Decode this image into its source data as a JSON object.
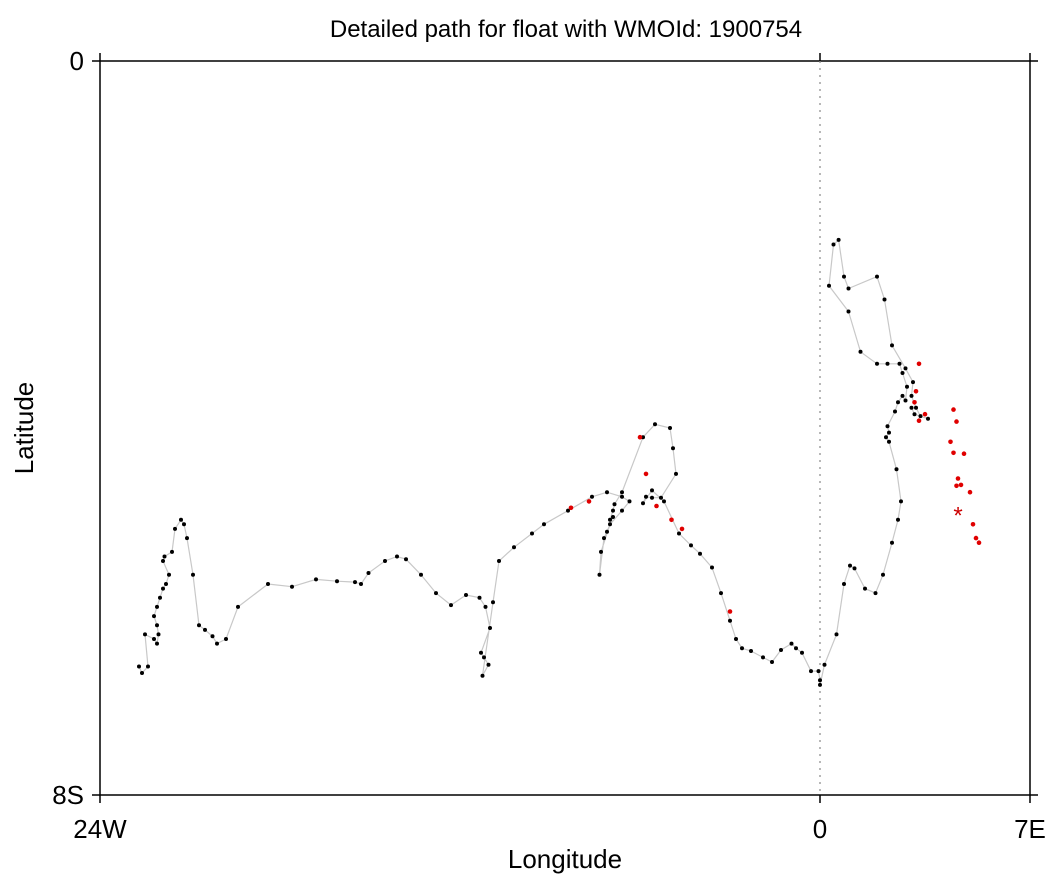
{
  "chart_data": {
    "type": "scatter",
    "title": "Detailed path for float with WMOId: 1900754",
    "xlabel": "Longitude",
    "ylabel": "Latitude",
    "xlim": [
      -24,
      7
    ],
    "ylim": [
      -8,
      0
    ],
    "x_ticks": [
      {
        "value": -24,
        "label": "24W"
      },
      {
        "value": 0,
        "label": "0"
      },
      {
        "value": 7,
        "label": "7E"
      }
    ],
    "y_ticks": [
      {
        "value": 0,
        "label": "0"
      },
      {
        "value": -8,
        "label": "8S"
      }
    ],
    "grid": false,
    "reference_line": {
      "x": 0,
      "style": "dotted"
    },
    "colors": {
      "path_line": "#c8c8c8",
      "point": "#000000",
      "highlight": "#e00000",
      "marker": "#cc0000"
    },
    "series": [
      {
        "values_note": "",
        "points": [
          [
            -22.7,
            -6.6
          ],
          [
            -22.6,
            -6.67
          ],
          [
            -22.4,
            -6.6
          ],
          [
            -22.5,
            -6.25
          ],
          [
            -22.2,
            -6.3
          ],
          [
            -22.1,
            -6.35
          ],
          [
            -22.05,
            -6.25
          ],
          [
            -22.1,
            -6.15
          ],
          [
            -22.2,
            -6.05
          ],
          [
            -22.1,
            -5.95
          ],
          [
            -22.0,
            -5.85
          ],
          [
            -21.9,
            -5.75
          ],
          [
            -21.8,
            -5.7
          ],
          [
            -21.7,
            -5.6
          ],
          [
            -21.9,
            -5.45
          ],
          [
            -21.85,
            -5.4
          ],
          [
            -21.6,
            -5.35
          ],
          [
            -21.5,
            -5.1
          ],
          [
            -21.3,
            -5.0
          ],
          [
            -21.2,
            -5.05
          ],
          [
            -21.1,
            -5.2
          ],
          [
            -20.9,
            -5.6
          ],
          [
            -20.7,
            -6.15
          ],
          [
            -20.5,
            -6.2
          ],
          [
            -20.25,
            -6.27
          ],
          [
            -20.1,
            -6.35
          ],
          [
            -19.8,
            -6.3
          ],
          [
            -19.4,
            -5.95
          ],
          [
            -18.4,
            -5.7
          ],
          [
            -17.6,
            -5.73
          ],
          [
            -16.8,
            -5.65
          ],
          [
            -16.1,
            -5.67
          ],
          [
            -15.5,
            -5.68
          ],
          [
            -15.3,
            -5.7
          ],
          [
            -15.05,
            -5.58
          ],
          [
            -14.5,
            -5.45
          ],
          [
            -14.1,
            -5.4
          ],
          [
            -13.8,
            -5.43
          ],
          [
            -13.3,
            -5.6
          ],
          [
            -12.8,
            -5.8
          ],
          [
            -12.3,
            -5.93
          ],
          [
            -11.8,
            -5.82
          ],
          [
            -11.35,
            -5.85
          ],
          [
            -11.15,
            -5.95
          ],
          [
            -11.0,
            -6.18
          ],
          [
            -11.3,
            -6.45
          ],
          [
            -11.2,
            -6.5
          ],
          [
            -11.05,
            -6.58
          ],
          [
            -11.25,
            -6.7
          ],
          [
            -10.9,
            -5.9
          ],
          [
            -10.7,
            -5.45
          ],
          [
            -10.2,
            -5.3
          ],
          [
            -9.6,
            -5.15
          ],
          [
            -9.2,
            -5.05
          ],
          [
            -8.4,
            -4.9
          ],
          [
            -7.6,
            -4.75
          ],
          [
            -7.1,
            -4.7
          ],
          [
            -6.6,
            -4.75
          ],
          [
            -6.35,
            -4.8
          ],
          [
            -6.6,
            -4.9
          ],
          [
            -7.0,
            -5.05
          ],
          [
            -7.3,
            -5.35
          ],
          [
            -7.35,
            -5.6
          ],
          [
            -7.2,
            -5.2
          ],
          [
            -7.1,
            -5.13
          ],
          [
            -6.9,
            -4.97
          ],
          [
            -7.0,
            -5.0
          ],
          [
            -6.9,
            -4.9
          ],
          [
            -6.85,
            -4.83
          ],
          [
            -6.6,
            -4.7
          ],
          [
            -5.9,
            -4.1
          ],
          [
            -5.5,
            -3.96
          ],
          [
            -5.0,
            -4.0
          ],
          [
            -4.9,
            -4.22
          ],
          [
            -4.8,
            -4.5
          ],
          [
            -5.3,
            -4.76
          ],
          [
            -5.6,
            -4.76
          ],
          [
            -5.8,
            -4.75
          ],
          [
            -5.9,
            -4.82
          ],
          [
            -5.6,
            -4.68
          ],
          [
            -5.2,
            -4.8
          ],
          [
            -4.7,
            -5.15
          ],
          [
            -4.3,
            -5.28
          ],
          [
            -4.0,
            -5.37
          ],
          [
            -3.6,
            -5.52
          ],
          [
            -3.3,
            -5.8
          ],
          [
            -3.0,
            -6.1
          ],
          [
            -2.8,
            -6.3
          ],
          [
            -2.6,
            -6.4
          ],
          [
            -2.3,
            -6.43
          ],
          [
            -1.9,
            -6.5
          ],
          [
            -1.6,
            -6.55
          ],
          [
            -1.3,
            -6.42
          ],
          [
            -0.95,
            -6.35
          ],
          [
            -0.8,
            -6.4
          ],
          [
            -0.6,
            -6.45
          ],
          [
            -0.3,
            -6.65
          ],
          [
            -0.05,
            -6.65
          ],
          [
            0.0,
            -6.75
          ],
          [
            0.0,
            -6.8
          ],
          [
            0.15,
            -6.58
          ],
          [
            0.55,
            -6.25
          ],
          [
            0.8,
            -5.7
          ],
          [
            1.0,
            -5.5
          ],
          [
            1.15,
            -5.53
          ],
          [
            1.5,
            -5.75
          ],
          [
            1.85,
            -5.8
          ],
          [
            2.1,
            -5.6
          ],
          [
            2.4,
            -5.25
          ],
          [
            2.6,
            -5.0
          ],
          [
            2.7,
            -4.8
          ],
          [
            2.55,
            -4.45
          ],
          [
            2.3,
            -4.15
          ],
          [
            2.2,
            -4.1
          ],
          [
            2.3,
            -4.05
          ],
          [
            2.25,
            -3.98
          ],
          [
            2.5,
            -3.82
          ],
          [
            2.6,
            -3.72
          ],
          [
            2.75,
            -3.65
          ],
          [
            2.85,
            -3.7
          ],
          [
            2.9,
            -3.55
          ],
          [
            2.75,
            -3.4
          ],
          [
            2.65,
            -3.3
          ],
          [
            2.25,
            -3.3
          ],
          [
            1.9,
            -3.3
          ],
          [
            1.35,
            -3.17
          ],
          [
            0.95,
            -2.73
          ],
          [
            0.3,
            -2.45
          ],
          [
            0.45,
            -2.0
          ],
          [
            0.62,
            -1.95
          ],
          [
            0.8,
            -2.35
          ],
          [
            0.95,
            -2.48
          ],
          [
            1.9,
            -2.35
          ],
          [
            2.15,
            -2.6
          ],
          [
            2.4,
            -3.1
          ],
          [
            2.85,
            -3.35
          ],
          [
            3.1,
            -3.5
          ],
          [
            3.05,
            -3.65
          ],
          [
            3.2,
            -3.78
          ],
          [
            3.35,
            -3.87
          ],
          [
            3.6,
            -3.9
          ],
          [
            3.15,
            -3.85
          ],
          [
            3.05,
            -3.78
          ]
        ]
      },
      {
        "name": "",
        "highlighted_points": [
          [
            -8.3,
            -4.87
          ],
          [
            -7.7,
            -4.8
          ],
          [
            -6.0,
            -4.1
          ],
          [
            -5.8,
            -4.5
          ],
          [
            -5.45,
            -4.85
          ],
          [
            -4.95,
            -5.0
          ],
          [
            -4.6,
            -5.1
          ],
          [
            -3.0,
            -6.0
          ],
          [
            3.3,
            -3.3
          ],
          [
            3.2,
            -3.6
          ],
          [
            3.15,
            -3.72
          ],
          [
            3.3,
            -3.92
          ],
          [
            3.5,
            -3.85
          ],
          [
            4.45,
            -3.8
          ],
          [
            4.55,
            -3.93
          ],
          [
            4.35,
            -4.15
          ],
          [
            4.45,
            -4.27
          ],
          [
            4.8,
            -4.28
          ],
          [
            4.6,
            -4.55
          ],
          [
            4.7,
            -4.62
          ],
          [
            4.55,
            -4.63
          ],
          [
            5.0,
            -4.7
          ],
          [
            5.1,
            -5.05
          ],
          [
            5.2,
            -5.2
          ],
          [
            5.3,
            -5.25
          ]
        ]
      }
    ],
    "end_marker": {
      "x": 4.6,
      "y": -4.93,
      "symbol": "*"
    }
  }
}
